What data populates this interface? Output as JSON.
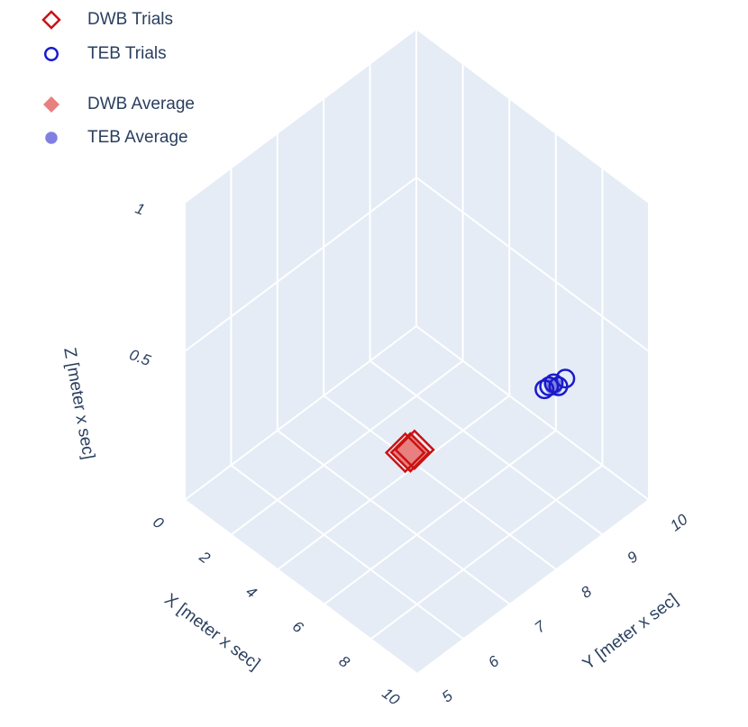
{
  "chart_data": {
    "type": "scatter3d",
    "xlabel": "X [meter x sec]",
    "ylabel": "Y [meter x sec]",
    "zlabel": "Z [meter x sec]",
    "xlim": [
      0,
      10
    ],
    "ylim": [
      5,
      10
    ],
    "zlim": [
      0,
      1
    ],
    "xticks": [
      0,
      2,
      4,
      6,
      8,
      10
    ],
    "yticks": [
      5,
      6,
      7,
      8,
      9,
      10
    ],
    "zticks": [
      0.5,
      1
    ],
    "grid": true,
    "series": [
      {
        "name": "DWB Trials",
        "color": "#cc1111",
        "symbol": "diamond-open",
        "x": [
          5.1,
          5.2,
          5.3
        ],
        "y": [
          7.2,
          7.26,
          7.3
        ],
        "z": [
          0.2,
          0.2,
          0.21
        ]
      },
      {
        "name": "TEB Trials",
        "color": "#1a1acc",
        "symbol": "circle-open",
        "x": [
          7.9,
          8.0,
          8.1,
          8.2,
          8.3
        ],
        "y": [
          8.8,
          8.85,
          8.9,
          8.95,
          9.05
        ],
        "z": [
          0.39,
          0.4,
          0.41,
          0.4,
          0.42
        ]
      },
      {
        "name": "DWB Average",
        "color": "#e88080",
        "symbol": "diamond",
        "x": [
          5.2
        ],
        "y": [
          7.26
        ],
        "z": [
          0.2
        ]
      },
      {
        "name": "TEB Average",
        "color": "#8080e0",
        "symbol": "circle",
        "x": [
          8.1
        ],
        "y": [
          8.9
        ],
        "z": [
          0.4
        ]
      }
    ]
  }
}
